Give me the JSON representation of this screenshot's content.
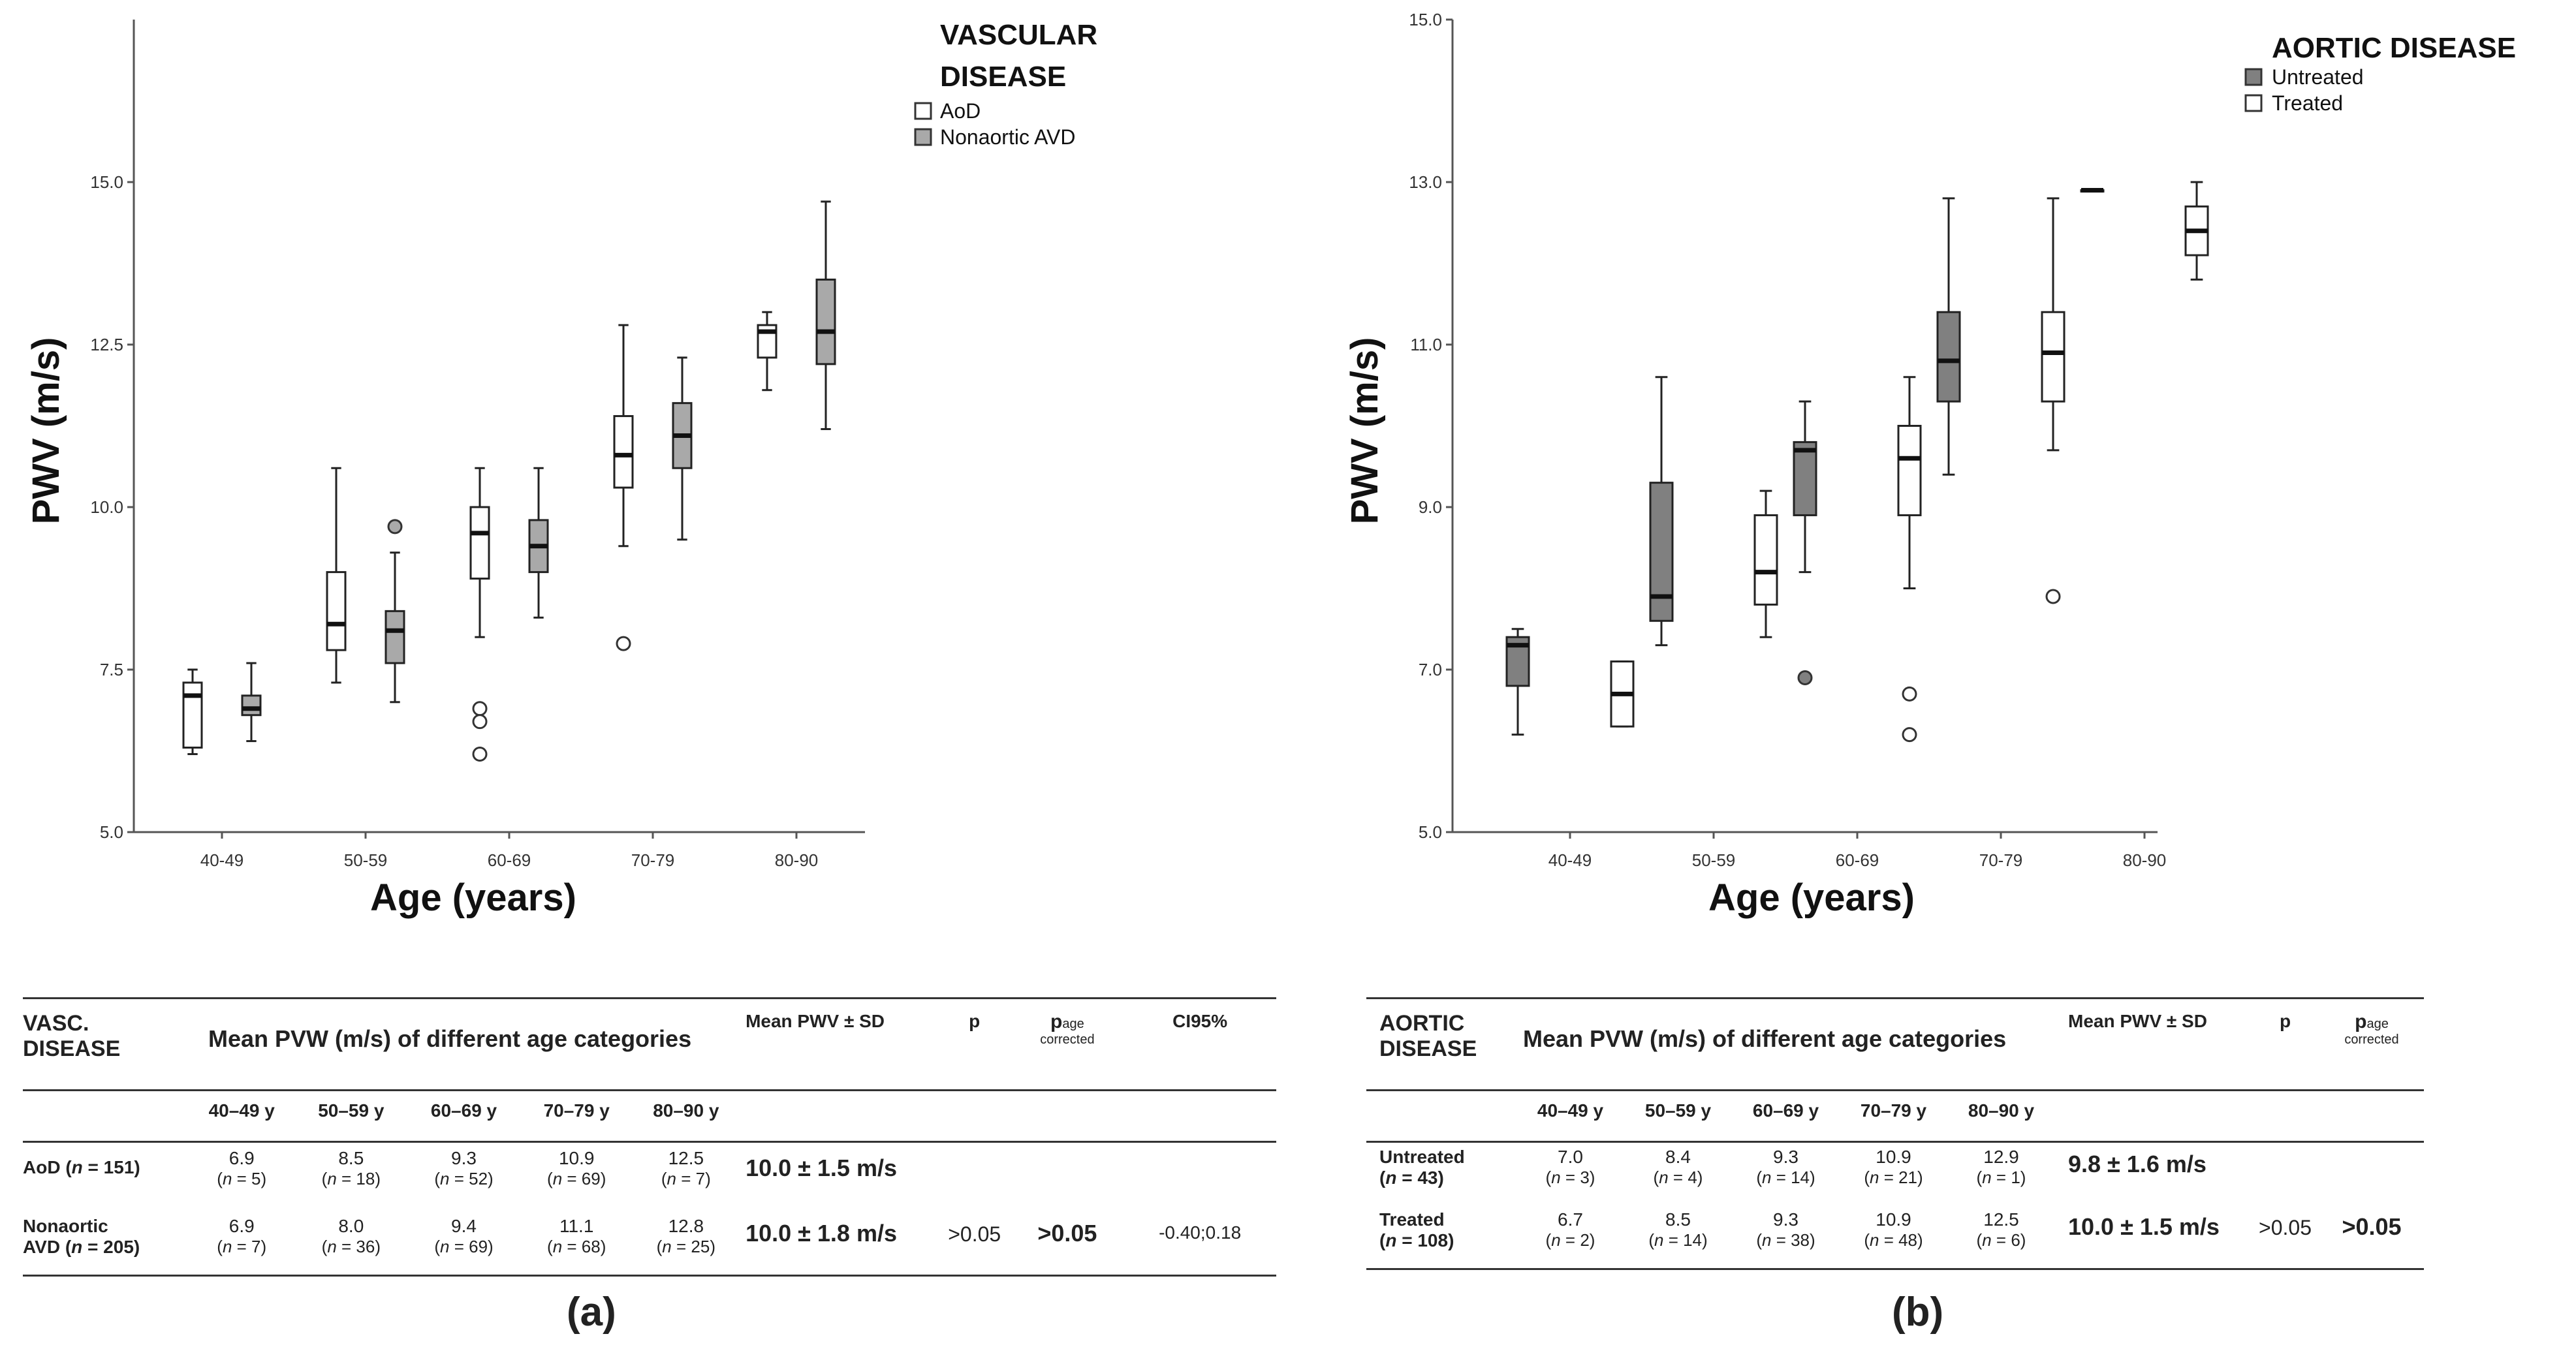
{
  "panels": {
    "a": {
      "label": "(a)",
      "legend": {
        "title_lines": [
          "VASCULAR",
          "DISEASE"
        ],
        "entries": [
          {
            "name": "AoD",
            "fill": "#ffffff"
          },
          {
            "name": "Nonaortic AVD",
            "fill": "#a9a9a9"
          }
        ]
      },
      "table": {
        "header_label_lines": [
          "VASC.",
          "DISEASE"
        ],
        "group_title": "Mean PVW (m/s) of different age categories",
        "mean_header": "Mean PWV ± SD",
        "p_header": "p",
        "p_age_main": "p",
        "p_age_sub": "age",
        "p_age_sub2": "corrected",
        "ci_header": "CI95%",
        "age_cols": [
          "40–49 y",
          "50–59 y",
          "60–69 y",
          "70–79 y",
          "80–90 y"
        ],
        "rows": [
          {
            "label_pre": "AoD (",
            "label_n": "n",
            "label_post": " = 151)",
            "label_pre2": "",
            "values": [
              {
                "v": "6.9",
                "n": "= 5)"
              },
              {
                "v": "8.5",
                "n": "= 18)"
              },
              {
                "v": "9.3",
                "n": "= 52)"
              },
              {
                "v": "10.9",
                "n": "= 69)"
              },
              {
                "v": "12.5",
                "n": "= 7)"
              }
            ],
            "mean": "10.0 ± 1.5 m/s",
            "p": "",
            "p_age": "",
            "ci": ""
          },
          {
            "label_pre": "Nonaortic",
            "label_pre2": "AVD (",
            "label_n": "n",
            "label_post": " = 205)",
            "values": [
              {
                "v": "6.9",
                "n": "= 7)"
              },
              {
                "v": "8.0",
                "n": "= 36)"
              },
              {
                "v": "9.4",
                "n": "= 69)"
              },
              {
                "v": "11.1",
                "n": "= 68)"
              },
              {
                "v": "12.8",
                "n": "= 25)"
              }
            ],
            "mean": "10.0 ± 1.8 m/s",
            "p": ">0.05",
            "p_age": ">0.05",
            "ci": "-0.40;0.18"
          }
        ]
      }
    },
    "b": {
      "label": "(b)",
      "legend": {
        "title_lines": [
          "AORTIC  DISEASE"
        ],
        "entries": [
          {
            "name": "Untreated",
            "fill": "#808080"
          },
          {
            "name": "Treated",
            "fill": "#ffffff"
          }
        ]
      },
      "table": {
        "header_label_lines": [
          "AORTIC",
          "DISEASE"
        ],
        "group_title": "Mean PVW (m/s) of different age categories",
        "mean_header": "Mean PWV ± SD",
        "p_header": "p",
        "p_age_main": "p",
        "p_age_sub": "age",
        "p_age_sub2": "corrected",
        "age_cols": [
          "40–49 y",
          "50–59 y",
          "60–69 y",
          "70–79 y",
          "80–90 y"
        ],
        "rows": [
          {
            "label_pre": "Untreated",
            "label_pre2": "(",
            "label_n": "n",
            "label_post": " = 43)",
            "values": [
              {
                "v": "7.0",
                "n": "= 3)"
              },
              {
                "v": "8.4",
                "n": "= 4)"
              },
              {
                "v": "9.3",
                "n": "= 14)"
              },
              {
                "v": "10.9",
                "n": "= 21)"
              },
              {
                "v": "12.9",
                "n": "= 1)"
              }
            ],
            "mean": "9.8 ± 1.6 m/s",
            "p": "",
            "p_age": ""
          },
          {
            "label_pre": "Treated",
            "label_pre2": "(",
            "label_n": "n",
            "label_post": " = 108)",
            "values": [
              {
                "v": "6.7",
                "n": "= 2)"
              },
              {
                "v": "8.5",
                "n": "= 14)"
              },
              {
                "v": "9.3",
                "n": "= 38)"
              },
              {
                "v": "10.9",
                "n": "= 48)"
              },
              {
                "v": "12.5",
                "n": "= 6)"
              }
            ],
            "mean": "10.0 ± 1.5 m/s",
            "p": ">0.05",
            "p_age": ">0.05"
          }
        ]
      }
    }
  },
  "chart_data": [
    {
      "type": "boxplot",
      "panel": "(a)",
      "xlabel": "Age (years)",
      "ylabel": "PWV (m/s)",
      "ylim": [
        5.0,
        17.5
      ],
      "yticks": [
        "5.0",
        "7.5",
        "10.0",
        "12.5",
        "15.0"
      ],
      "ytick_values": [
        5.0,
        7.5,
        10.0,
        12.5,
        15.0
      ],
      "categories": [
        "40-49",
        "50-59",
        "60-69",
        "70-79",
        "80-90"
      ],
      "legend_position": "top-right",
      "series": [
        {
          "name": "AoD",
          "fill": "#ffffff",
          "boxes": [
            {
              "min": 6.2,
              "q1": 6.3,
              "median": 7.1,
              "q3": 7.3,
              "max": 7.5,
              "outliers": []
            },
            {
              "min": 7.3,
              "q1": 7.8,
              "median": 8.2,
              "q3": 9.0,
              "max": 10.6,
              "outliers": []
            },
            {
              "min": 8.0,
              "q1": 8.9,
              "median": 9.6,
              "q3": 10.0,
              "max": 10.6,
              "outliers": [
                6.9,
                6.7,
                6.2
              ]
            },
            {
              "min": 9.4,
              "q1": 10.3,
              "median": 10.8,
              "q3": 11.4,
              "max": 12.8,
              "outliers": [
                7.9
              ]
            },
            {
              "min": 11.8,
              "q1": 12.3,
              "median": 12.7,
              "q3": 12.8,
              "max": 13.0,
              "outliers": []
            }
          ]
        },
        {
          "name": "Nonaortic AVD",
          "fill": "#a9a9a9",
          "boxes": [
            {
              "min": 6.4,
              "q1": 6.8,
              "median": 6.9,
              "q3": 7.1,
              "max": 7.6,
              "outliers": []
            },
            {
              "min": 7.0,
              "q1": 7.6,
              "median": 8.1,
              "q3": 8.4,
              "max": 9.3,
              "outliers": [
                9.7
              ]
            },
            {
              "min": 8.3,
              "q1": 9.0,
              "median": 9.4,
              "q3": 9.8,
              "max": 10.6,
              "outliers": []
            },
            {
              "min": 9.5,
              "q1": 10.6,
              "median": 11.1,
              "q3": 11.6,
              "max": 12.3,
              "outliers": []
            },
            {
              "min": 11.2,
              "q1": 12.2,
              "median": 12.7,
              "q3": 13.5,
              "max": 14.7,
              "outliers": []
            }
          ]
        }
      ]
    },
    {
      "type": "boxplot",
      "panel": "(b)",
      "xlabel": "Age (years)",
      "ylabel": "PWV (m/s)",
      "ylim": [
        5.0,
        15.0
      ],
      "yticks": [
        "5.0",
        "7.0",
        "9.0",
        "11.0",
        "13.0",
        "15.0"
      ],
      "ytick_values": [
        5.0,
        7.0,
        9.0,
        11.0,
        13.0,
        15.0
      ],
      "categories": [
        "40-49",
        "50-59",
        "60-69",
        "70-79",
        "80-90"
      ],
      "legend_position": "top-right",
      "series": [
        {
          "name": "Untreated",
          "fill": "#808080",
          "boxes": [
            {
              "min": 6.2,
              "q1": 6.8,
              "median": 7.3,
              "q3": 7.4,
              "max": 7.5,
              "outliers": []
            },
            {
              "min": 7.3,
              "q1": 7.6,
              "median": 7.9,
              "q3": 9.3,
              "max": 10.6,
              "outliers": []
            },
            {
              "min": 8.2,
              "q1": 8.9,
              "median": 9.7,
              "q3": 9.8,
              "max": 10.3,
              "outliers": [
                6.9
              ]
            },
            {
              "min": 9.4,
              "q1": 10.3,
              "median": 10.8,
              "q3": 11.4,
              "max": 12.8,
              "outliers": []
            },
            {
              "min": 12.9,
              "q1": 12.9,
              "median": 12.9,
              "q3": 12.9,
              "max": 12.9,
              "outliers": []
            }
          ]
        },
        {
          "name": "Treated",
          "fill": "#ffffff",
          "boxes": [
            {
              "min": 6.3,
              "q1": 6.3,
              "median": 6.7,
              "q3": 7.1,
              "max": 7.1,
              "outliers": []
            },
            {
              "min": 7.4,
              "q1": 7.8,
              "median": 8.2,
              "q3": 8.9,
              "max": 9.2,
              "outliers": []
            },
            {
              "min": 8.0,
              "q1": 8.9,
              "median": 9.6,
              "q3": 10.0,
              "max": 10.6,
              "outliers": [
                6.7,
                6.2
              ]
            },
            {
              "min": 9.7,
              "q1": 10.3,
              "median": 10.9,
              "q3": 11.4,
              "max": 12.8,
              "outliers": [
                7.9
              ]
            },
            {
              "min": 11.8,
              "q1": 12.1,
              "median": 12.4,
              "q3": 12.7,
              "max": 13.0,
              "outliers": []
            }
          ]
        }
      ]
    }
  ]
}
